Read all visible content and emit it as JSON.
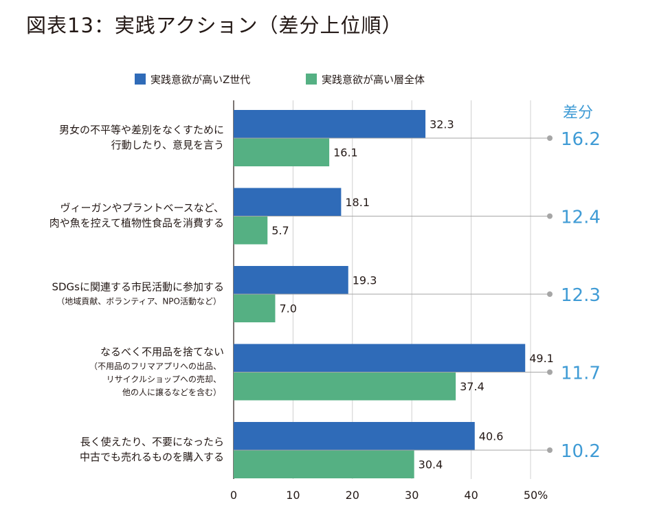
{
  "title": "図表13：実践アクション（差分上位順）",
  "chart_data": {
    "type": "bar",
    "orientation": "horizontal",
    "title": "図表13：実践アクション（差分上位順）",
    "categories": [
      {
        "lines": [
          "男女の不平等や差別をなくすために",
          "行動したり、意見を言う"
        ],
        "sub": []
      },
      {
        "lines": [
          "ヴィーガンやプラントベースなど、",
          "肉や魚を控えて植物性食品を消費する"
        ],
        "sub": []
      },
      {
        "lines": [
          "SDGsに関連する市民活動に参加する"
        ],
        "sub": [
          "（地域貢献、ボランティア、NPO活動など）"
        ]
      },
      {
        "lines": [
          "なるべく不用品を捨てない"
        ],
        "sub": [
          "（不用品のフリマアプリへの出品、",
          "リサイクルショップへの売却、",
          "他の人に譲るなどを含む）"
        ]
      },
      {
        "lines": [
          "長く使えたり、不要になったら",
          "中古でも売れるものを購入する"
        ],
        "sub": []
      }
    ],
    "series": [
      {
        "name": "実践意欲が高いZ世代",
        "color": "#2f6bb8",
        "values": [
          32.3,
          18.1,
          19.3,
          49.1,
          40.6
        ]
      },
      {
        "name": "実践意欲が高い層全体",
        "color": "#55b083",
        "values": [
          16.1,
          5.7,
          7.0,
          37.4,
          30.4
        ]
      }
    ],
    "value_labels": [
      [
        "32.3",
        "18.1",
        "19.3",
        "49.1",
        "40.6"
      ],
      [
        "16.1",
        "5.7",
        "7.0",
        "37.4",
        "30.4"
      ]
    ],
    "difference": {
      "header": "差分",
      "labels": [
        "16.2",
        "12.4",
        "12.3",
        "11.7",
        "10.2"
      ],
      "values": [
        16.2,
        12.4,
        12.3,
        11.7,
        10.2
      ],
      "color": "#3f9bd5"
    },
    "x_ticks": [
      "0",
      "10",
      "20",
      "30",
      "40",
      "50"
    ],
    "x_unit": "%",
    "xlim": [
      0,
      50
    ],
    "grid": true,
    "legend_position": "top"
  }
}
